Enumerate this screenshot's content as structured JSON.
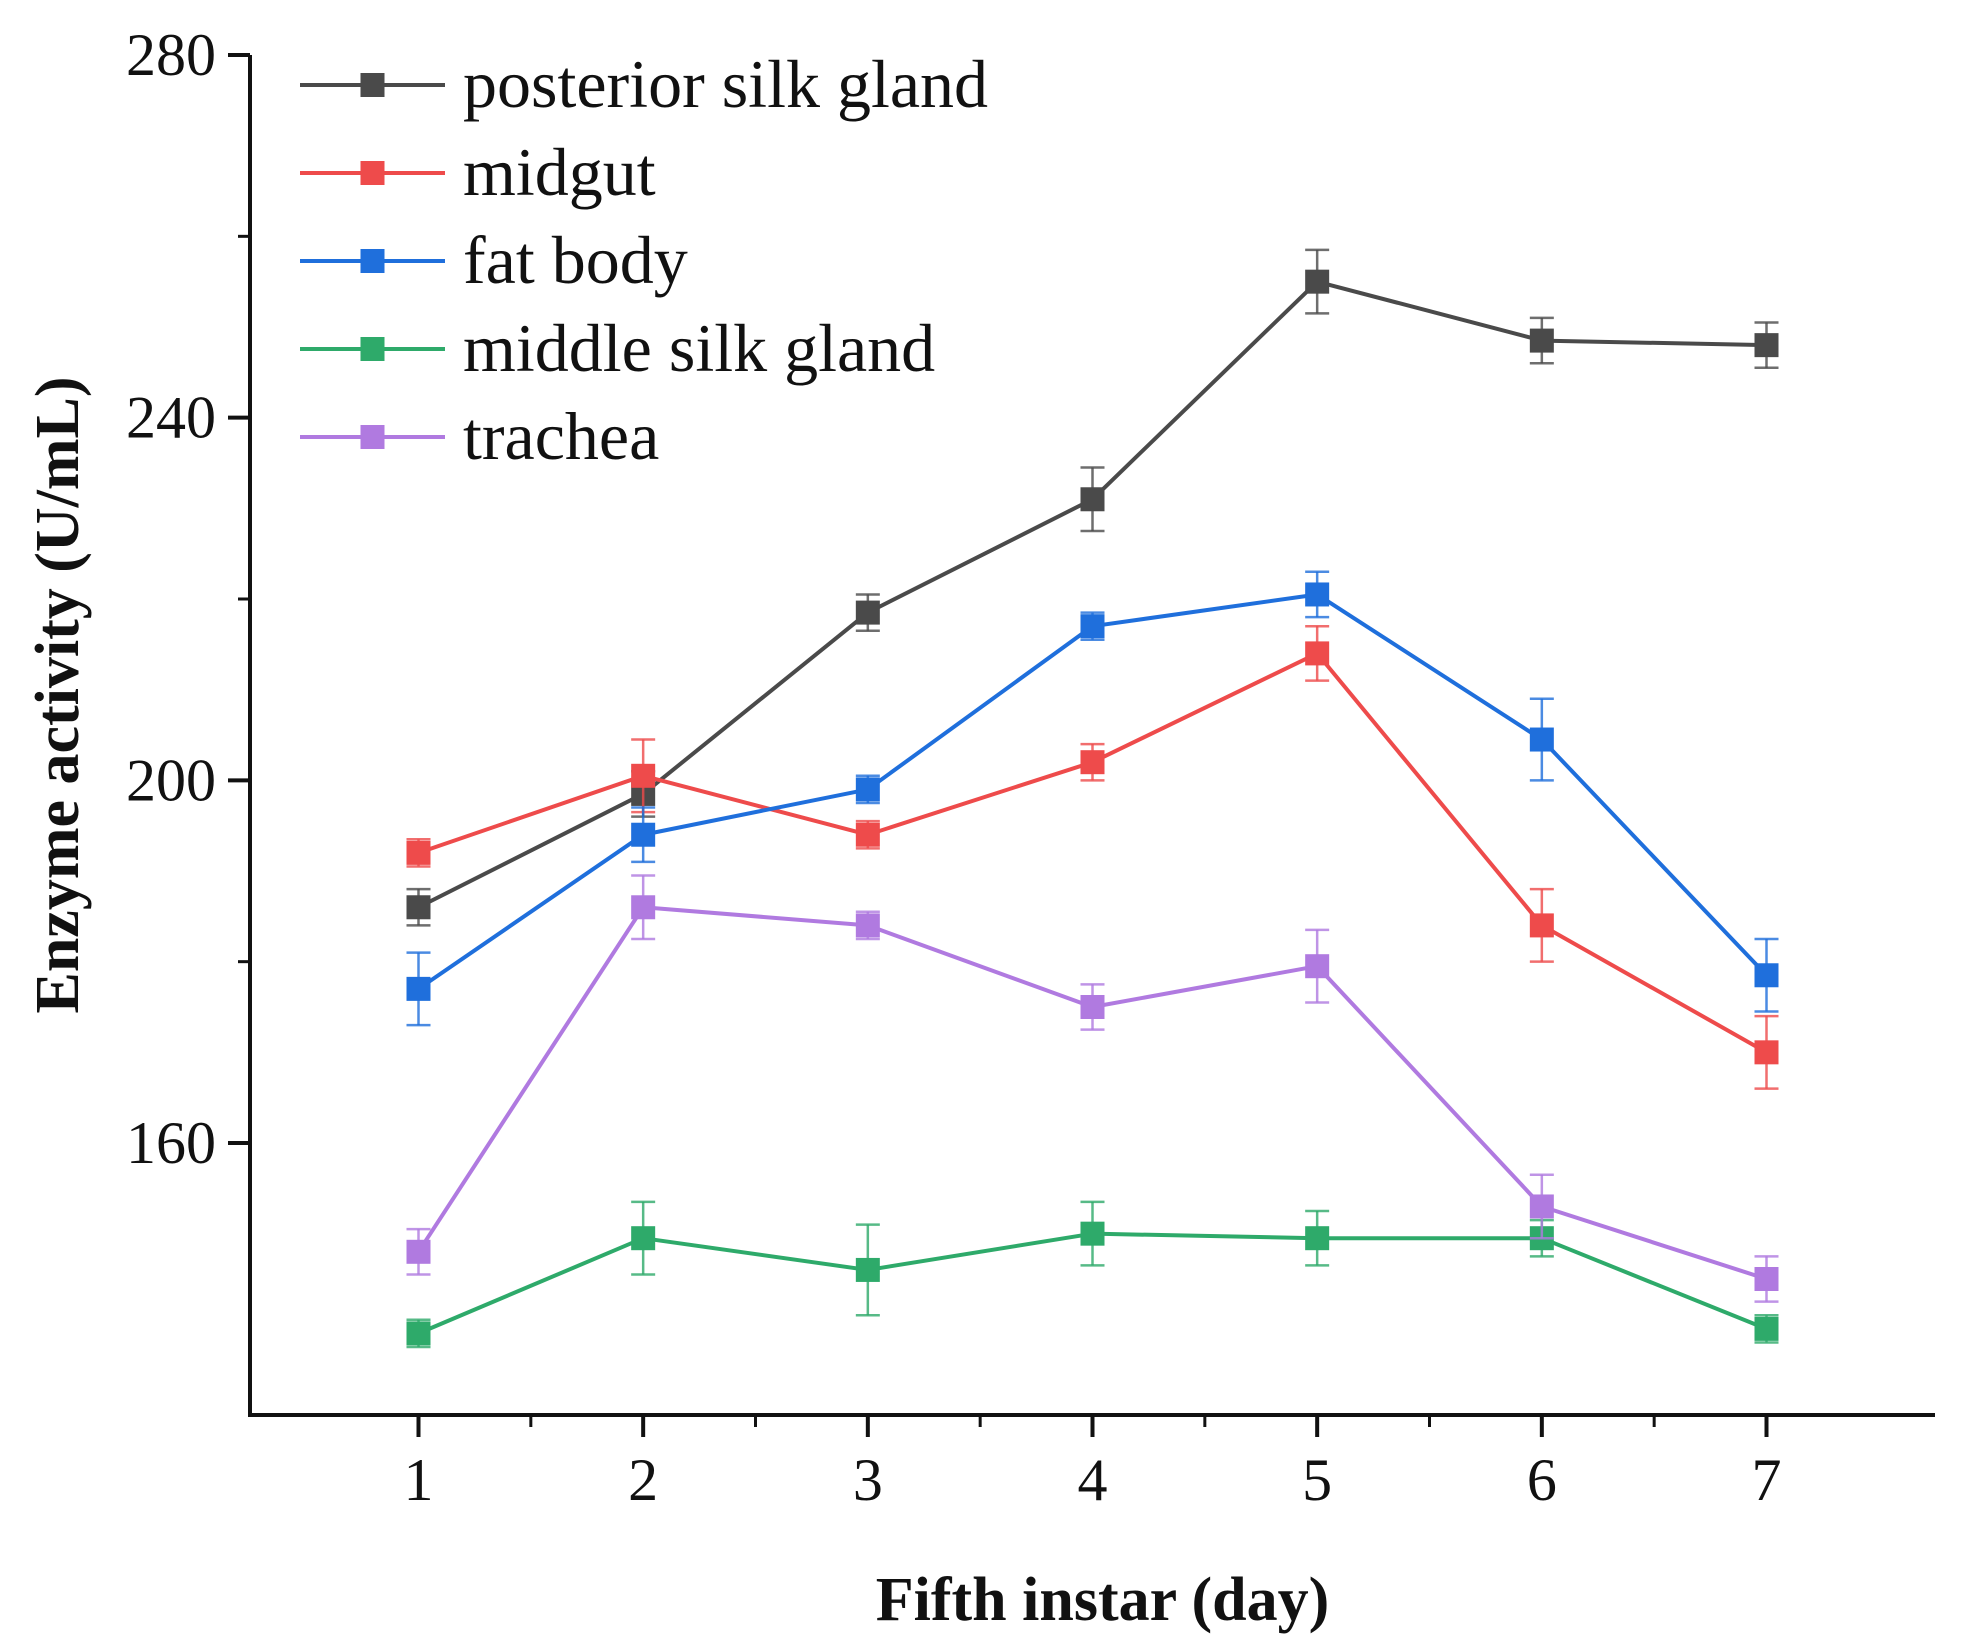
{
  "chart_data": {
    "type": "line",
    "title": "",
    "xlabel": "Fifth instar (day)",
    "ylabel": "Enzyme activity (U/mL)",
    "x": [
      1,
      2,
      3,
      4,
      5,
      6,
      7
    ],
    "xlim": [
      0.25,
      7.75
    ],
    "ylim": [
      130,
      280
    ],
    "yticks": [
      160,
      200,
      240,
      280
    ],
    "legend_position": "top-left",
    "grid": false,
    "series": [
      {
        "name": "posterior silk gland",
        "color": "#4a4a4a",
        "values": [
          186,
          198.5,
          218.5,
          231,
          255,
          248.5,
          248
        ],
        "errors": [
          2,
          2.5,
          2,
          3.5,
          3.5,
          2.5,
          2.5
        ]
      },
      {
        "name": "midgut",
        "color": "#ee4b4b",
        "values": [
          192,
          200.5,
          194,
          202,
          214,
          184,
          170
        ],
        "errors": [
          1.5,
          4,
          1.5,
          2,
          3,
          4,
          4
        ]
      },
      {
        "name": "fat body",
        "color": "#1f6fdc",
        "values": [
          177,
          194,
          199,
          217,
          220.5,
          204.5,
          178.5
        ],
        "errors": [
          4,
          3,
          1.5,
          1.5,
          2.5,
          4.5,
          4
        ]
      },
      {
        "name": "middle silk gland",
        "color": "#2eaa6a",
        "values": [
          139,
          149.5,
          146,
          150,
          149.5,
          149.5,
          139.5
        ],
        "errors": [
          1.5,
          4,
          5,
          3.5,
          3,
          2,
          1.5
        ]
      },
      {
        "name": "trachea",
        "color": "#b07ae0",
        "values": [
          148,
          186,
          184,
          175,
          179.5,
          153,
          145
        ],
        "errors": [
          2.5,
          3.5,
          1.5,
          2.5,
          4,
          3.5,
          2.5
        ]
      }
    ]
  }
}
